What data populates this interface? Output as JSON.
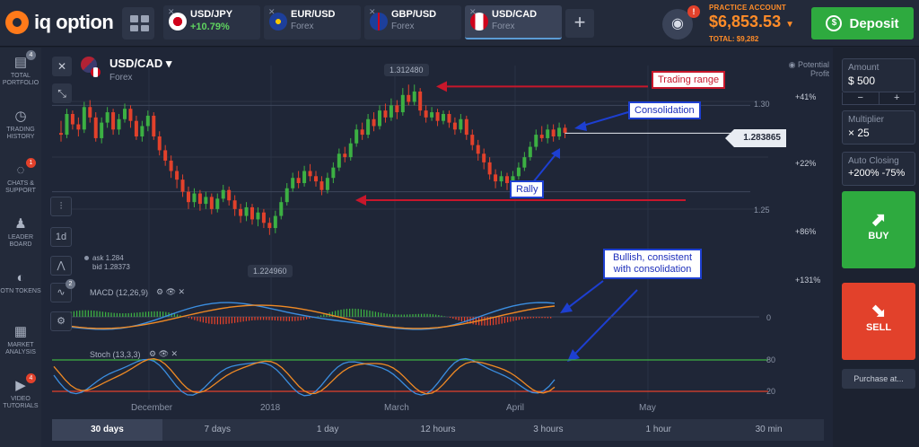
{
  "app": {
    "logo_text": "iq option"
  },
  "tabs": [
    {
      "name": "USD/JPY",
      "sub": "+10.79%",
      "flag": "jp"
    },
    {
      "name": "EUR/USD",
      "sub": "Forex",
      "flag": "eu"
    },
    {
      "name": "GBP/USD",
      "sub": "Forex",
      "flag": "gb"
    },
    {
      "name": "USD/CAD",
      "sub": "Forex",
      "flag": "ca",
      "active": true
    }
  ],
  "account": {
    "label": "PRACTICE ACCOUNT",
    "balance": "$6,853.53",
    "total": "TOTAL: $9,282",
    "badge": "!"
  },
  "deposit_label": "Deposit",
  "sidebar": [
    {
      "label": "TOTAL PORTFOLIO",
      "icon": "portfolio-icon",
      "badge": "4"
    },
    {
      "label": "TRADING HISTORY",
      "icon": "history-icon"
    },
    {
      "label": "CHATS & SUPPORT",
      "icon": "chat-icon",
      "badge": "1"
    },
    {
      "label": "LEADER BOARD",
      "icon": "leaderboard-icon"
    },
    {
      "label": "OTN TOKENS",
      "icon": "otn-icon"
    },
    {
      "label": "MARKET ANALYSIS",
      "icon": "market-analysis-icon"
    },
    {
      "label": "VIDEO TUTORIALS",
      "icon": "video-icon",
      "badge": "4"
    }
  ],
  "instrument": {
    "name": "USD/CAD",
    "type": "Forex"
  },
  "chart_tools": {
    "candle_badge": "",
    "period": "1d",
    "indicator_badge": "2"
  },
  "ask_bid": {
    "ask": "ask 1.284",
    "bid": "bid 1.28373"
  },
  "indicators": {
    "macd": "MACD (12,26,9)",
    "stoch": "Stoch (13,3,3)"
  },
  "price_labels": {
    "high": "1.312480",
    "low": "1.224960",
    "current": "1.283865"
  },
  "y_axis": {
    "labels": [
      "1.30",
      "1.25"
    ],
    "macd_zero": "0",
    "stoch_80": "80",
    "stoch_20": "20"
  },
  "potential_profit": {
    "header": "Potential Profit",
    "levels": [
      "+41%",
      "+22%",
      "+86%",
      "+131%"
    ]
  },
  "x_axis": [
    "December",
    "2018",
    "March",
    "April",
    "May"
  ],
  "timeframes": [
    {
      "label": "30 days",
      "active": true
    },
    {
      "label": "7 days"
    },
    {
      "label": "1 day"
    },
    {
      "label": "12 hours"
    },
    {
      "label": "3 hours"
    },
    {
      "label": "1 hour"
    },
    {
      "label": "30 min"
    }
  ],
  "annotations": {
    "trading_range": "Trading range",
    "consolidation": "Consolidation",
    "rally": "Rally",
    "bullish": "Bullish, consistent with consolidation"
  },
  "trade_panel": {
    "amount_label": "Amount",
    "amount_value": "$ 500",
    "multiplier_label": "Multiplier",
    "multiplier_value": "× 25",
    "auto_closing_label": "Auto Closing",
    "auto_closing_value": "+200% -75%",
    "buy_label": "BUY",
    "sell_label": "SELL",
    "purchase_label": "Purchase at...",
    "minus": "−",
    "plus": "+"
  },
  "colors": {
    "accent_orange": "#ff8c28",
    "buy_green": "#2eaa3f",
    "sell_red": "#e2412b",
    "candle_up": "#3cb043",
    "candle_down": "#e2412b",
    "annotation_blue": "#1d3fd1",
    "annotation_red": "#c8172b"
  },
  "chart_data": {
    "type": "candlestick",
    "candles": [
      [
        1.284,
        1.283,
        1.291,
        1.279
      ],
      [
        1.283,
        1.295,
        1.298,
        1.281
      ],
      [
        1.295,
        1.289,
        1.297,
        1.286
      ],
      [
        1.289,
        1.286,
        1.293,
        1.282
      ],
      [
        1.286,
        1.299,
        1.302,
        1.284
      ],
      [
        1.299,
        1.293,
        1.303,
        1.29
      ],
      [
        1.293,
        1.281,
        1.296,
        1.279
      ],
      [
        1.281,
        1.29,
        1.293,
        1.278
      ],
      [
        1.29,
        1.296,
        1.299,
        1.287
      ],
      [
        1.296,
        1.286,
        1.298,
        1.283
      ],
      [
        1.286,
        1.292,
        1.295,
        1.283
      ],
      [
        1.292,
        1.298,
        1.301,
        1.29
      ],
      [
        1.298,
        1.291,
        1.3,
        1.287
      ],
      [
        1.291,
        1.282,
        1.294,
        1.28
      ],
      [
        1.282,
        1.288,
        1.291,
        1.279
      ],
      [
        1.288,
        1.294,
        1.297,
        1.285
      ],
      [
        1.294,
        1.282,
        1.296,
        1.28
      ],
      [
        1.282,
        1.274,
        1.285,
        1.271
      ],
      [
        1.274,
        1.268,
        1.277,
        1.265
      ],
      [
        1.268,
        1.262,
        1.271,
        1.258
      ],
      [
        1.262,
        1.257,
        1.265,
        1.252
      ],
      [
        1.257,
        1.25,
        1.26,
        1.247
      ],
      [
        1.25,
        1.244,
        1.253,
        1.24
      ],
      [
        1.244,
        1.249,
        1.252,
        1.241
      ],
      [
        1.249,
        1.243,
        1.251,
        1.239
      ],
      [
        1.243,
        1.247,
        1.25,
        1.24
      ],
      [
        1.247,
        1.24,
        1.249,
        1.237
      ],
      [
        1.24,
        1.246,
        1.249,
        1.238
      ],
      [
        1.246,
        1.251,
        1.254,
        1.244
      ],
      [
        1.251,
        1.245,
        1.253,
        1.242
      ],
      [
        1.245,
        1.24,
        1.248,
        1.236
      ],
      [
        1.24,
        1.236,
        1.243,
        1.232
      ],
      [
        1.236,
        1.241,
        1.244,
        1.233
      ],
      [
        1.241,
        1.234,
        1.243,
        1.231
      ],
      [
        1.234,
        1.238,
        1.241,
        1.23
      ],
      [
        1.238,
        1.232,
        1.24,
        1.229
      ],
      [
        1.232,
        1.229,
        1.235,
        1.225
      ],
      [
        1.229,
        1.236,
        1.239,
        1.226
      ],
      [
        1.236,
        1.244,
        1.247,
        1.234
      ],
      [
        1.244,
        1.252,
        1.255,
        1.242
      ],
      [
        1.252,
        1.258,
        1.261,
        1.25
      ],
      [
        1.258,
        1.255,
        1.262,
        1.252
      ],
      [
        1.255,
        1.262,
        1.265,
        1.253
      ],
      [
        1.262,
        1.259,
        1.266,
        1.256
      ],
      [
        1.259,
        1.256,
        1.262,
        1.253
      ],
      [
        1.256,
        1.251,
        1.259,
        1.248
      ],
      [
        1.251,
        1.258,
        1.261,
        1.249
      ],
      [
        1.258,
        1.264,
        1.267,
        1.255
      ],
      [
        1.264,
        1.272,
        1.275,
        1.262
      ],
      [
        1.272,
        1.27,
        1.276,
        1.267
      ],
      [
        1.27,
        1.278,
        1.281,
        1.268
      ],
      [
        1.278,
        1.286,
        1.289,
        1.276
      ],
      [
        1.286,
        1.283,
        1.29,
        1.28
      ],
      [
        1.283,
        1.292,
        1.295,
        1.281
      ],
      [
        1.292,
        1.288,
        1.296,
        1.285
      ],
      [
        1.288,
        1.297,
        1.3,
        1.286
      ],
      [
        1.297,
        1.293,
        1.301,
        1.29
      ],
      [
        1.293,
        1.3,
        1.304,
        1.291
      ],
      [
        1.3,
        1.296,
        1.303,
        1.292
      ],
      [
        1.296,
        1.306,
        1.31,
        1.294
      ],
      [
        1.306,
        1.302,
        1.312,
        1.3
      ],
      [
        1.302,
        1.308,
        1.312,
        1.3
      ],
      [
        1.308,
        1.297,
        1.31,
        1.294
      ],
      [
        1.297,
        1.293,
        1.3,
        1.29
      ],
      [
        1.293,
        1.296,
        1.299,
        1.291
      ],
      [
        1.296,
        1.291,
        1.298,
        1.288
      ],
      [
        1.291,
        1.295,
        1.297,
        1.289
      ],
      [
        1.295,
        1.29,
        1.297,
        1.287
      ],
      [
        1.29,
        1.286,
        1.293,
        1.283
      ],
      [
        1.286,
        1.292,
        1.295,
        1.284
      ],
      [
        1.292,
        1.283,
        1.294,
        1.28
      ],
      [
        1.283,
        1.277,
        1.286,
        1.274
      ],
      [
        1.277,
        1.272,
        1.28,
        1.268
      ],
      [
        1.272,
        1.267,
        1.275,
        1.263
      ],
      [
        1.267,
        1.26,
        1.27,
        1.257
      ],
      [
        1.26,
        1.256,
        1.263,
        1.252
      ],
      [
        1.256,
        1.259,
        1.262,
        1.253
      ],
      [
        1.259,
        1.255,
        1.261,
        1.251
      ],
      [
        1.255,
        1.259,
        1.262,
        1.253
      ],
      [
        1.259,
        1.264,
        1.267,
        1.257
      ],
      [
        1.264,
        1.27,
        1.273,
        1.262
      ],
      [
        1.27,
        1.276,
        1.279,
        1.268
      ],
      [
        1.276,
        1.283,
        1.286,
        1.274
      ],
      [
        1.283,
        1.281,
        1.288,
        1.279
      ],
      [
        1.281,
        1.286,
        1.289,
        1.278
      ],
      [
        1.286,
        1.282,
        1.289,
        1.279
      ],
      [
        1.282,
        1.287,
        1.29,
        1.28
      ],
      [
        1.287,
        1.284,
        1.289,
        1.281
      ]
    ],
    "ylim": [
      1.215,
      1.322
    ],
    "levels": {
      "high": 1.31248,
      "low": 1.22496,
      "current": 1.283865
    }
  }
}
